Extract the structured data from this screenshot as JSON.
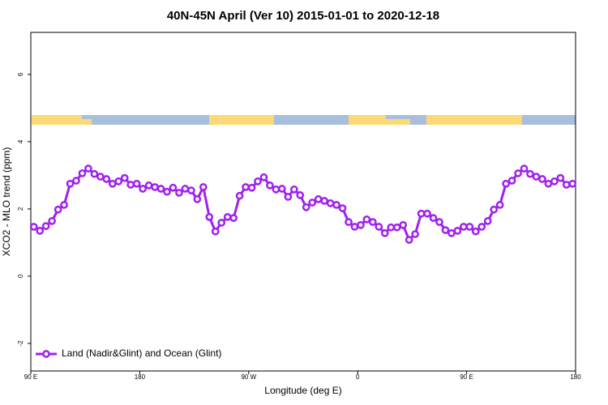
{
  "chart_data": {
    "type": "line",
    "title": "40N-45N April (Ver 10)   2015-01-01 to 2020-12-18",
    "x_label": "Longitude (deg E)",
    "y_label": "XCO2 - MLO trend (ppm)",
    "x": [
      92.5,
      97.5,
      102.5,
      107.5,
      112.5,
      117.5,
      122.5,
      127.5,
      132.5,
      137.5,
      142.5,
      147.5,
      152.5,
      157.5,
      162.5,
      167.5,
      172.5,
      177.5,
      182.5,
      187.5,
      192.5,
      197.5,
      202.5,
      207.5,
      212.5,
      217.5,
      222.5,
      227.5,
      232.5,
      237.5,
      242.5,
      247.5,
      252.5,
      257.5,
      262.5,
      267.5,
      272.5,
      277.5,
      282.5,
      287.5,
      292.5,
      297.5,
      302.5,
      307.5,
      312.5,
      317.5,
      322.5,
      327.5,
      332.5,
      337.5,
      342.5,
      347.5,
      352.5,
      357.5,
      362.5,
      367.5,
      372.5,
      377.5,
      382.5,
      387.5,
      392.5,
      397.5,
      402.5,
      407.5,
      412.5,
      417.5,
      422.5,
      427.5,
      432.5,
      437.5,
      442.5,
      447.5,
      452.5,
      457.5,
      462.5,
      467.5,
      472.5,
      477.5,
      482.5,
      487.5,
      492.5,
      497.5,
      502.5,
      507.5,
      512.5,
      517.5,
      522.5,
      527.5,
      532.5,
      537.5
    ],
    "series": [
      {
        "name": "Land (Nadir&Glint) and Ocean (Glint)",
        "color": "#a020f0",
        "values": [
          1.47,
          1.35,
          1.49,
          1.64,
          1.98,
          2.12,
          2.75,
          2.84,
          3.06,
          3.2,
          3.04,
          2.96,
          2.89,
          2.75,
          2.82,
          2.92,
          2.72,
          2.75,
          2.6,
          2.7,
          2.65,
          2.6,
          2.51,
          2.63,
          2.48,
          2.6,
          2.55,
          2.29,
          2.65,
          1.76,
          1.33,
          1.59,
          1.76,
          1.73,
          2.39,
          2.65,
          2.63,
          2.82,
          2.94,
          2.7,
          2.58,
          2.6,
          2.36,
          2.58,
          2.41,
          2.05,
          2.19,
          2.29,
          2.24,
          2.17,
          2.12,
          2.02,
          1.61,
          1.47,
          1.52,
          1.69,
          1.61,
          1.47,
          1.28,
          1.45,
          1.45,
          1.52,
          1.08,
          1.25,
          1.86,
          1.86,
          1.73,
          1.61,
          1.37,
          1.28,
          1.35,
          1.47,
          1.47,
          1.33,
          1.47,
          1.64,
          1.98,
          2.12,
          2.75,
          2.84,
          3.06,
          3.2,
          3.04,
          2.96,
          2.89,
          2.75,
          2.82,
          2.92,
          2.72,
          2.75
        ]
      }
    ],
    "xlim": [
      90,
      540
    ],
    "xticks": [
      {
        "value": 90,
        "label": "90 E"
      },
      180,
      {
        "value": 270,
        "label": "90 W"
      },
      {
        "value": 360,
        "label": "0"
      },
      {
        "value": 450,
        "label": "90 E"
      },
      {
        "value": 540,
        "label": "180"
      }
    ],
    "ylim": [
      -2.82,
      7.25
    ],
    "yticks": [
      -2,
      0,
      2,
      4,
      6
    ],
    "legend": "bottom-left"
  }
}
